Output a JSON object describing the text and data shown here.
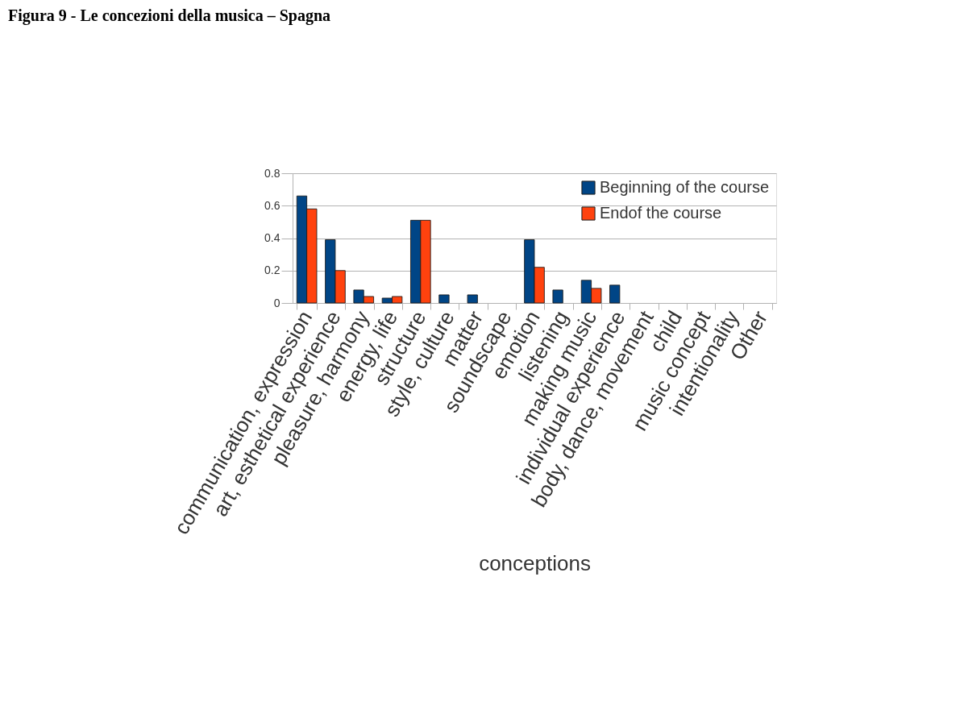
{
  "chart_data": {
    "type": "bar",
    "title": "Figura 9 - Le concezioni della musica – Spagna",
    "xlabel": "conceptions",
    "categories": [
      "communication, expression",
      "art, esthetical experience",
      "pleasure, harmony",
      "energy, life",
      "structure",
      "style, culture",
      "matter",
      "soundscape",
      "emotion",
      "listening",
      "making music",
      "individual experience",
      "body, dance, movement",
      "child",
      "music concept",
      "intentionality",
      "Other"
    ],
    "series": [
      {
        "name": "Beginning of the course",
        "color": "#004586",
        "values": [
          0.66,
          0.39,
          0.08,
          0.03,
          0.51,
          0.05,
          0.05,
          null,
          0.39,
          0.08,
          0.14,
          0.11,
          null,
          null,
          null,
          null,
          null
        ]
      },
      {
        "name": "Endof the course",
        "color": "#ff420e",
        "values": [
          0.58,
          0.2,
          0.04,
          0.04,
          0.51,
          null,
          null,
          null,
          0.22,
          null,
          0.09,
          null,
          null,
          null,
          null,
          null,
          null
        ]
      }
    ],
    "ylim": [
      0,
      0.8
    ],
    "yticks": [
      0,
      0.2,
      0.4,
      0.6,
      0.8
    ],
    "grid": "y",
    "legend": "top right"
  }
}
